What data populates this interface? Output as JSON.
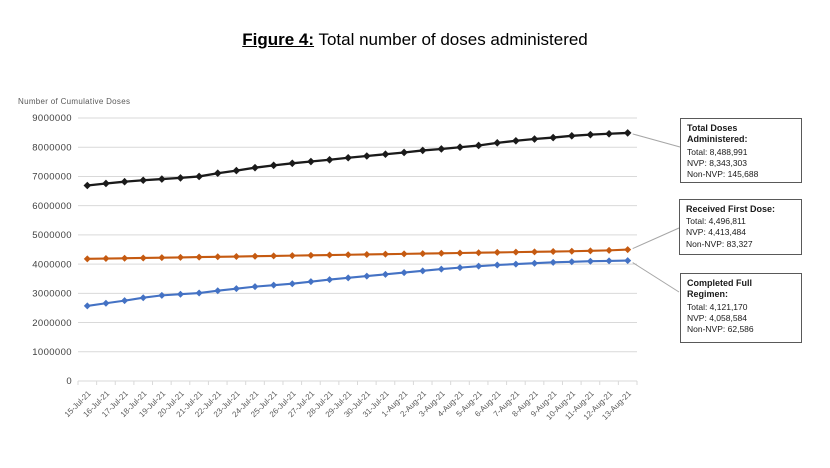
{
  "title": {
    "figure_label": "Figure 4:",
    "text": " Total number of doses administered"
  },
  "chart_data": {
    "type": "line",
    "title": "Figure 4: Total number of doses administered",
    "ylabel": "Number of Cumulative Doses",
    "xlabel": "",
    "ylim": [
      0,
      9000000
    ],
    "ytick_interval": 1000000,
    "ytick_labels": [
      "0",
      "1000000",
      "2000000",
      "3000000",
      "4000000",
      "5000000",
      "6000000",
      "7000000",
      "8000000",
      "9000000"
    ],
    "grid": true,
    "legend_position": "none",
    "marker": "diamond",
    "categories": [
      "15-Jul-21",
      "16-Jul-21",
      "17-Jul-21",
      "18-Jul-21",
      "19-Jul-21",
      "20-Jul-21",
      "21-Jul-21",
      "22-Jul-21",
      "23-Jul-21",
      "24-Jul-21",
      "25-Jul-21",
      "26-Jul-21",
      "27-Jul-21",
      "28-Jul-21",
      "29-Jul-21",
      "30-Jul-21",
      "31-Jul-21",
      "1-Aug-21",
      "2-Aug-21",
      "3-Aug-21",
      "4-Aug-21",
      "5-Aug-21",
      "6-Aug-21",
      "7-Aug-21",
      "8-Aug-21",
      "9-Aug-21",
      "10-Aug-21",
      "11-Aug-21",
      "12-Aug-21",
      "13-Aug-21"
    ],
    "series": [
      {
        "name": "Total Doses Administered",
        "color": "#1A1A1A",
        "values": [
          6690000,
          6760000,
          6820000,
          6870000,
          6910000,
          6950000,
          7000000,
          7110000,
          7200000,
          7300000,
          7380000,
          7450000,
          7510000,
          7570000,
          7640000,
          7700000,
          7760000,
          7820000,
          7890000,
          7940000,
          8000000,
          8060000,
          8150000,
          8220000,
          8280000,
          8330000,
          8390000,
          8430000,
          8460000,
          8488991
        ]
      },
      {
        "name": "Received First Dose",
        "color": "#C55A11",
        "values": [
          4180000,
          4190000,
          4200000,
          4210000,
          4220000,
          4230000,
          4240000,
          4250000,
          4260000,
          4270000,
          4280000,
          4290000,
          4300000,
          4310000,
          4320000,
          4330000,
          4340000,
          4350000,
          4360000,
          4370000,
          4380000,
          4390000,
          4400000,
          4410000,
          4420000,
          4430000,
          4440000,
          4455000,
          4470000,
          4496811
        ]
      },
      {
        "name": "Completed Full Regimen",
        "color": "#4472C4",
        "values": [
          2570000,
          2660000,
          2750000,
          2850000,
          2930000,
          2970000,
          3010000,
          3090000,
          3160000,
          3230000,
          3280000,
          3330000,
          3400000,
          3470000,
          3530000,
          3590000,
          3650000,
          3710000,
          3770000,
          3830000,
          3880000,
          3930000,
          3970000,
          4000000,
          4030000,
          4060000,
          4080000,
          4100000,
          4110000,
          4121170
        ]
      }
    ]
  },
  "callouts": [
    {
      "title": "Total Doses Administered:",
      "lines": [
        "Total: 8,488,991",
        "NVP: 8,343,303",
        "Non-NVP: 145,688"
      ]
    },
    {
      "title": "Received First Dose:",
      "lines": [
        "Total: 4,496,811",
        "NVP: 4,413,484",
        "Non-NVP: 83,327"
      ]
    },
    {
      "title": "Completed Full Regimen:",
      "lines": [
        "Total: 4,121,170",
        "NVP: 4,058,584",
        "Non-NVP: 62,586"
      ]
    }
  ],
  "colors": {
    "grid": "#D9D9D9",
    "leader": "#A6A6A6",
    "x_tick_text": "#595959",
    "y_tick_text": "#404040",
    "axis_title_text": "#595959"
  }
}
